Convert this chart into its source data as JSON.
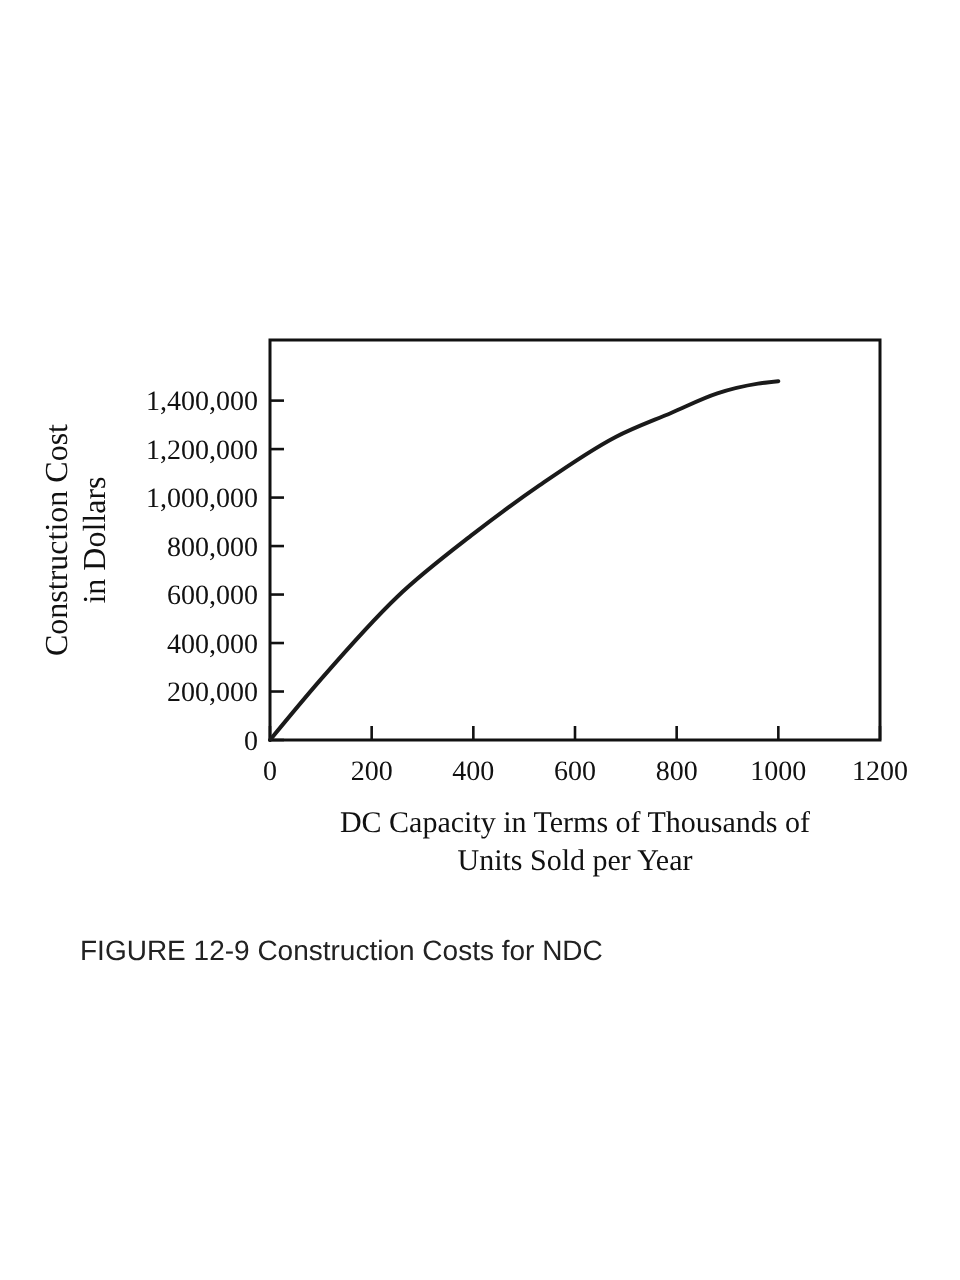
{
  "chart_data": {
    "type": "line",
    "xlabel": "DC Capacity in Terms of Thousands of\nUnits Sold per Year",
    "ylabel": "Construction Cost\nin Dollars",
    "annotations": [
      "FIGURE 12-9  Construction Costs for NDC"
    ],
    "x": [
      0,
      100,
      250,
      400,
      530,
      680,
      790,
      880,
      960,
      1000
    ],
    "values": [
      0,
      250000,
      590000,
      850000,
      1050000,
      1250000,
      1350000,
      1430000,
      1470000,
      1480000
    ],
    "color": "#1a1a1a",
    "xlim": [
      0,
      1200
    ],
    "xticks": [
      0,
      200,
      400,
      600,
      800,
      1000,
      1200
    ],
    "ylim": [
      0,
      1650000
    ],
    "yticks": [
      {
        "value": 0,
        "label": "0"
      },
      {
        "value": 200000,
        "label": "200,000"
      },
      {
        "value": 400000,
        "label": "400,000"
      },
      {
        "value": 600000,
        "label": "600,000"
      },
      {
        "value": 800000,
        "label": "800,000"
      },
      {
        "value": 1000000,
        "label": "1,000,000"
      },
      {
        "value": 1200000,
        "label": "1,200,000"
      },
      {
        "value": 1400000,
        "label": "1,400,000"
      }
    ],
    "grid": false,
    "marker": "none",
    "line_style": "solid"
  }
}
